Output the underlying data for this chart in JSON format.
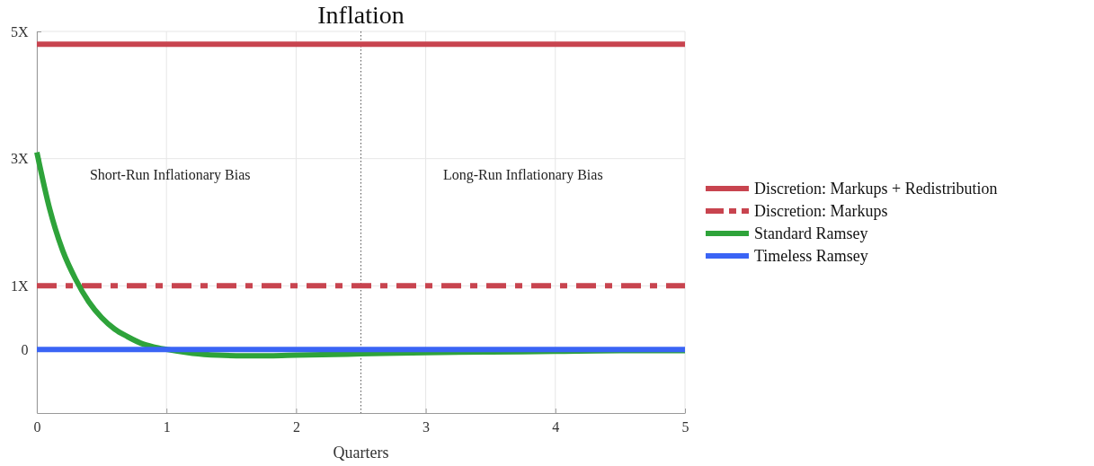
{
  "chart_data": {
    "type": "line",
    "title": "Inflation",
    "xlabel": "Quarters",
    "xlim": [
      0,
      5
    ],
    "xticks": [
      0,
      1,
      2,
      3,
      4,
      5
    ],
    "ylim": [
      -1,
      5
    ],
    "yticks": [
      {
        "value": 0,
        "label": "0"
      },
      {
        "value": 1,
        "label": "1X"
      },
      {
        "value": 3,
        "label": "3X"
      },
      {
        "value": 5,
        "label": "5X"
      }
    ],
    "grid": true,
    "legend": "right",
    "line_style": "solid",
    "marker": "none",
    "ref_lines": [
      {
        "axis": "x",
        "value": 2.5,
        "line_style": "dotted",
        "color": "#555555"
      }
    ],
    "annotations": [
      "Short-Run Inflationary Bias",
      "Long-Run Inflationary Bias"
    ],
    "series": [
      {
        "name": "Discretion: Markups + Redistribution",
        "color": "#c8444f",
        "x": [
          0,
          5
        ],
        "values": [
          4.8,
          4.8
        ]
      },
      {
        "name": "Discretion: Markups",
        "color": "#c8444f",
        "line_style": "dashed",
        "x": [
          0,
          5
        ],
        "values": [
          1,
          1
        ]
      },
      {
        "name": "Standard Ramsey",
        "color": "#2ea33a",
        "x": [
          0,
          0.1,
          0.2,
          0.3,
          0.4,
          0.5,
          0.6,
          0.7,
          0.8,
          0.9,
          1,
          1.2,
          1.4,
          1.6,
          1.8,
          2,
          2.5,
          3,
          3.5,
          4,
          4.5,
          5
        ],
        "values": [
          3.1,
          2.2,
          1.55,
          1.1,
          0.75,
          0.5,
          0.32,
          0.2,
          0.1,
          0.04,
          0,
          -0.06,
          -0.09,
          -0.1,
          -0.1,
          -0.09,
          -0.07,
          -0.05,
          -0.04,
          -0.03,
          -0.02,
          -0.02
        ]
      },
      {
        "name": "Timeless Ramsey",
        "color": "#3a64f5",
        "x": [
          0,
          5
        ],
        "values": [
          0,
          0
        ]
      }
    ]
  }
}
